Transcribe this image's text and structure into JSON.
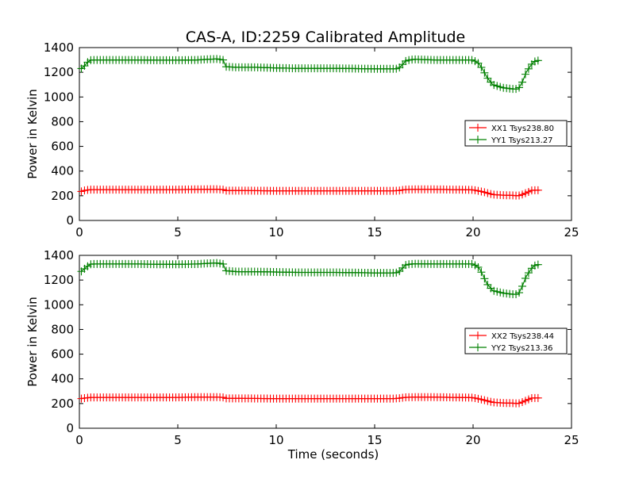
{
  "title": "CAS-A, ID:2259 Calibrated Amplitude",
  "chart_data": [
    {
      "type": "line",
      "title": "CAS-A, ID:2259 Calibrated Amplitude",
      "xlabel": "",
      "ylabel": "Power in Kelvin",
      "xlim": [
        0,
        25
      ],
      "ylim": [
        0,
        1400
      ],
      "xticks": [
        0,
        5,
        10,
        15,
        20,
        25
      ],
      "yticks": [
        0,
        200,
        400,
        600,
        800,
        1000,
        1200,
        1400
      ],
      "grid": false,
      "legend_position": "center-right",
      "marker": "+",
      "series": [
        {
          "name": "XX1 Tsys238.80",
          "color": "#ff0000",
          "points": [
            [
              0.1,
              235
            ],
            [
              0.3,
              245
            ],
            [
              0.6,
              250
            ],
            [
              1,
              250
            ],
            [
              2,
              250
            ],
            [
              3,
              250
            ],
            [
              4,
              250
            ],
            [
              5,
              250
            ],
            [
              6,
              252
            ],
            [
              7,
              253
            ],
            [
              7.3,
              250
            ],
            [
              7.4,
              242
            ],
            [
              8,
              242
            ],
            [
              10,
              240
            ],
            [
              12,
              240
            ],
            [
              14,
              240
            ],
            [
              16,
              240
            ],
            [
              16.3,
              243
            ],
            [
              16.5,
              250
            ],
            [
              17,
              252
            ],
            [
              18,
              252
            ],
            [
              19,
              250
            ],
            [
              20,
              248
            ],
            [
              20.5,
              232
            ],
            [
              21,
              210
            ],
            [
              21.5,
              205
            ],
            [
              22,
              203
            ],
            [
              22.3,
              200
            ],
            [
              22.5,
              210
            ],
            [
              22.8,
              230
            ],
            [
              23,
              245
            ],
            [
              23.4,
              245
            ]
          ]
        },
        {
          "name": "YY1 Tsys213.27",
          "color": "#008000",
          "points": [
            [
              0.1,
              1230
            ],
            [
              0.25,
              1250
            ],
            [
              0.4,
              1280
            ],
            [
              0.6,
              1300
            ],
            [
              1,
              1300
            ],
            [
              2,
              1300
            ],
            [
              3,
              1300
            ],
            [
              4,
              1298
            ],
            [
              5,
              1298
            ],
            [
              6,
              1300
            ],
            [
              6.5,
              1305
            ],
            [
              7,
              1308
            ],
            [
              7.3,
              1300
            ],
            [
              7.45,
              1245
            ],
            [
              8,
              1240
            ],
            [
              9,
              1240
            ],
            [
              10,
              1235
            ],
            [
              11,
              1232
            ],
            [
              12,
              1232
            ],
            [
              13,
              1232
            ],
            [
              14,
              1230
            ],
            [
              15,
              1228
            ],
            [
              16,
              1228
            ],
            [
              16.2,
              1230
            ],
            [
              16.4,
              1260
            ],
            [
              16.6,
              1295
            ],
            [
              17,
              1305
            ],
            [
              18,
              1300
            ],
            [
              19,
              1300
            ],
            [
              20,
              1300
            ],
            [
              20.3,
              1270
            ],
            [
              20.5,
              1220
            ],
            [
              20.7,
              1160
            ],
            [
              21,
              1100
            ],
            [
              21.5,
              1075
            ],
            [
              22,
              1065
            ],
            [
              22.3,
              1065
            ],
            [
              22.5,
              1120
            ],
            [
              22.7,
              1200
            ],
            [
              23,
              1270
            ],
            [
              23.2,
              1295
            ],
            [
              23.4,
              1295
            ]
          ]
        }
      ]
    },
    {
      "type": "line",
      "title": "",
      "xlabel": "Time (seconds)",
      "ylabel": "Power in Kelvin",
      "xlim": [
        0,
        25
      ],
      "ylim": [
        0,
        1400
      ],
      "xticks": [
        0,
        5,
        10,
        15,
        20,
        25
      ],
      "yticks": [
        0,
        200,
        400,
        600,
        800,
        1000,
        1200,
        1400
      ],
      "grid": false,
      "legend_position": "center-right",
      "marker": "+",
      "series": [
        {
          "name": "XX2 Tsys238.44",
          "color": "#ff0000",
          "points": [
            [
              0.1,
              240
            ],
            [
              0.3,
              245
            ],
            [
              0.6,
              250
            ],
            [
              1,
              250
            ],
            [
              2,
              250
            ],
            [
              3,
              250
            ],
            [
              4,
              250
            ],
            [
              5,
              250
            ],
            [
              6,
              252
            ],
            [
              7,
              252
            ],
            [
              7.3,
              250
            ],
            [
              7.4,
              242
            ],
            [
              8,
              242
            ],
            [
              10,
              240
            ],
            [
              12,
              240
            ],
            [
              14,
              240
            ],
            [
              16,
              240
            ],
            [
              16.3,
              244
            ],
            [
              16.5,
              250
            ],
            [
              17,
              252
            ],
            [
              18,
              252
            ],
            [
              19,
              250
            ],
            [
              20,
              248
            ],
            [
              20.5,
              230
            ],
            [
              21,
              210
            ],
            [
              21.5,
              205
            ],
            [
              22,
              203
            ],
            [
              22.3,
              200
            ],
            [
              22.5,
              212
            ],
            [
              22.8,
              232
            ],
            [
              23,
              245
            ],
            [
              23.4,
              245
            ]
          ]
        },
        {
          "name": "YY2 Tsys213.36",
          "color": "#008000",
          "points": [
            [
              0.1,
              1270
            ],
            [
              0.25,
              1290
            ],
            [
              0.4,
              1310
            ],
            [
              0.6,
              1330
            ],
            [
              1,
              1330
            ],
            [
              2,
              1330
            ],
            [
              3,
              1330
            ],
            [
              4,
              1328
            ],
            [
              5,
              1328
            ],
            [
              6,
              1330
            ],
            [
              6.5,
              1335
            ],
            [
              7,
              1338
            ],
            [
              7.3,
              1330
            ],
            [
              7.45,
              1275
            ],
            [
              8,
              1268
            ],
            [
              9,
              1268
            ],
            [
              10,
              1265
            ],
            [
              11,
              1262
            ],
            [
              12,
              1262
            ],
            [
              13,
              1262
            ],
            [
              14,
              1260
            ],
            [
              15,
              1258
            ],
            [
              16,
              1258
            ],
            [
              16.2,
              1262
            ],
            [
              16.4,
              1295
            ],
            [
              16.6,
              1325
            ],
            [
              17,
              1332
            ],
            [
              18,
              1330
            ],
            [
              19,
              1330
            ],
            [
              20,
              1330
            ],
            [
              20.3,
              1300
            ],
            [
              20.5,
              1240
            ],
            [
              20.7,
              1170
            ],
            [
              21,
              1115
            ],
            [
              21.5,
              1095
            ],
            [
              22,
              1085
            ],
            [
              22.3,
              1085
            ],
            [
              22.5,
              1150
            ],
            [
              22.7,
              1230
            ],
            [
              23,
              1300
            ],
            [
              23.2,
              1325
            ],
            [
              23.4,
              1325
            ]
          ]
        }
      ]
    }
  ]
}
